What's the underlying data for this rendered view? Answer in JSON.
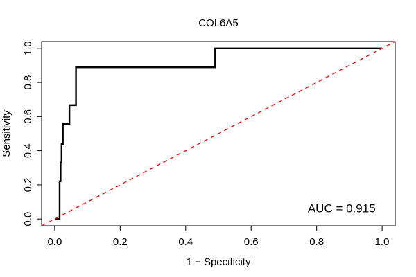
{
  "chart_data": {
    "type": "line",
    "title": "COL6A5",
    "xlabel": "1 − Specificity",
    "ylabel": "Sensitivity",
    "xlim": [
      -0.04,
      1.04
    ],
    "ylim": [
      -0.04,
      1.04
    ],
    "xticks": [
      0.0,
      0.2,
      0.4,
      0.6,
      0.8,
      1.0
    ],
    "xtick_labels": [
      "0.0",
      "0.2",
      "0.4",
      "0.6",
      "0.8",
      "1.0"
    ],
    "yticks": [
      0.0,
      0.2,
      0.4,
      0.6,
      0.8,
      1.0
    ],
    "ytick_labels": [
      "0.0",
      "0.2",
      "0.4",
      "0.6",
      "0.8",
      "1.0"
    ],
    "grid": false,
    "series": [
      {
        "color": "#000000",
        "style": "solid",
        "x": [
          0.0,
          0.015,
          0.015,
          0.018,
          0.018,
          0.021,
          0.021,
          0.025,
          0.025,
          0.045,
          0.045,
          0.065,
          0.065,
          0.49,
          0.49,
          1.0
        ],
        "y": [
          0.0,
          0.0,
          0.22,
          0.22,
          0.33,
          0.33,
          0.44,
          0.44,
          0.556,
          0.556,
          0.667,
          0.667,
          0.889,
          0.889,
          1.0,
          1.0
        ]
      },
      {
        "color": "#e31a1c",
        "style": "dashed",
        "x": [
          -0.04,
          1.04
        ],
        "y": [
          -0.04,
          1.04
        ]
      }
    ],
    "annotations": [
      {
        "text": "AUC = 0.915",
        "x": 0.98,
        "y": 0.04,
        "anchor": "end"
      }
    ]
  }
}
